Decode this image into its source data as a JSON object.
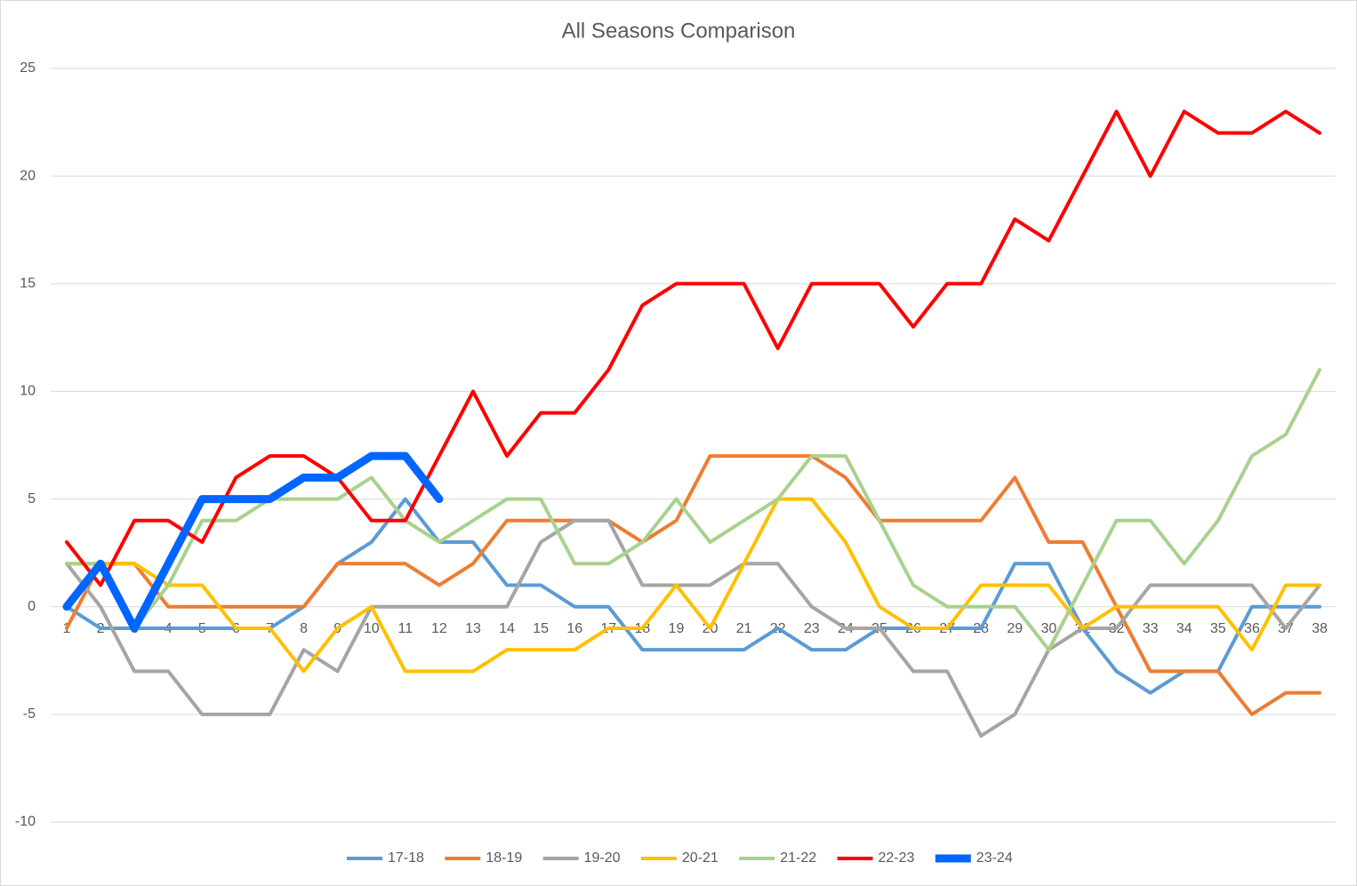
{
  "chart_data": {
    "type": "line",
    "title": "All Seasons Comparison",
    "categories": [
      1,
      2,
      3,
      4,
      5,
      6,
      7,
      8,
      9,
      10,
      11,
      12,
      13,
      14,
      15,
      16,
      17,
      18,
      19,
      20,
      21,
      22,
      23,
      24,
      25,
      26,
      27,
      28,
      29,
      30,
      31,
      32,
      33,
      34,
      35,
      36,
      37,
      38
    ],
    "ylim": [
      -10,
      25
    ],
    "yticks": [
      -10,
      -5,
      0,
      5,
      10,
      15,
      20,
      25
    ],
    "grid": true,
    "legend": "bottom",
    "series": [
      {
        "name": "17-18",
        "color": "#5b9bd5",
        "line_width": 4,
        "values": [
          0,
          -1,
          -1,
          -1,
          -1,
          -1,
          -1,
          0,
          2,
          3,
          5,
          3,
          3,
          1,
          1,
          0,
          0,
          -2,
          -2,
          -2,
          -2,
          -1,
          -2,
          -2,
          -1,
          -1,
          -1,
          -1,
          2,
          2,
          -1,
          -3,
          -4,
          -3,
          -3,
          0,
          0,
          0
        ]
      },
      {
        "name": "18-19",
        "color": "#ed7d31",
        "line_width": 4,
        "values": [
          -1,
          2,
          2,
          0,
          0,
          0,
          0,
          0,
          2,
          2,
          2,
          1,
          2,
          4,
          4,
          4,
          4,
          3,
          4,
          7,
          7,
          7,
          7,
          6,
          4,
          4,
          4,
          4,
          6,
          3,
          3,
          0,
          -3,
          -3,
          -3,
          -5,
          -4,
          -4
        ]
      },
      {
        "name": "19-20",
        "color": "#a5a5a5",
        "line_width": 4,
        "values": [
          2,
          0,
          -3,
          -3,
          -5,
          -5,
          -5,
          -2,
          -3,
          0,
          0,
          0,
          0,
          0,
          3,
          4,
          4,
          1,
          1,
          1,
          2,
          2,
          0,
          -1,
          -1,
          -3,
          -3,
          -6,
          -5,
          -2,
          -1,
          -1,
          1,
          1,
          1,
          1,
          -1,
          1
        ]
      },
      {
        "name": "20-21",
        "color": "#ffc000",
        "line_width": 4,
        "values": [
          2,
          2,
          2,
          1,
          1,
          -1,
          -1,
          -3,
          -1,
          0,
          -3,
          -3,
          -3,
          -2,
          -2,
          -2,
          -1,
          -1,
          1,
          -1,
          2,
          5,
          5,
          3,
          0,
          -1,
          -1,
          1,
          1,
          1,
          -1,
          0,
          0,
          0,
          0,
          -2,
          1,
          1
        ]
      },
      {
        "name": "21-22",
        "color": "#a9d18e",
        "line_width": 4,
        "values": [
          2,
          2,
          -1,
          1,
          4,
          4,
          5,
          5,
          5,
          6,
          4,
          3,
          4,
          5,
          5,
          2,
          2,
          3,
          5,
          3,
          4,
          5,
          7,
          7,
          4,
          1,
          0,
          0,
          0,
          -2,
          1,
          4,
          4,
          2,
          4,
          7,
          8,
          11
        ]
      },
      {
        "name": "22-23",
        "color": "#ff0000",
        "line_width": 4,
        "values": [
          3,
          1,
          4,
          4,
          3,
          6,
          7,
          7,
          6,
          4,
          4,
          7,
          10,
          7,
          9,
          9,
          11,
          14,
          15,
          15,
          15,
          12,
          15,
          15,
          15,
          13,
          15,
          15,
          18,
          17,
          20,
          23,
          20,
          23,
          22,
          22,
          23,
          22
        ]
      },
      {
        "name": "23-24",
        "color": "#0066ff",
        "line_width": 9,
        "values": [
          0,
          2,
          -1,
          2,
          5,
          5,
          5,
          6,
          6,
          7,
          7,
          5,
          null,
          null,
          null,
          null,
          null,
          null,
          null,
          null,
          null,
          null,
          null,
          null,
          null,
          null,
          null,
          null,
          null,
          null,
          null,
          null,
          null,
          null,
          null,
          null,
          null,
          null
        ]
      }
    ]
  }
}
